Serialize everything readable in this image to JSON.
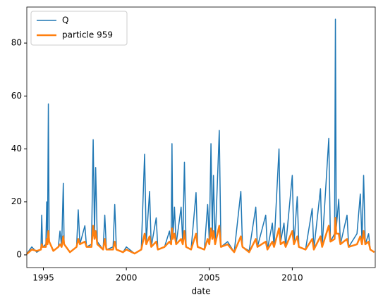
{
  "chart_data": {
    "type": "line",
    "xlabel": "date",
    "x": [
      1994.0,
      1994.3,
      1994.6,
      1994.85,
      1994.9,
      1994.95,
      1995.15,
      1995.2,
      1995.25,
      1995.3,
      1995.35,
      1995.6,
      1995.9,
      1996.0,
      1996.1,
      1996.2,
      1996.25,
      1996.6,
      1997.0,
      1997.1,
      1997.2,
      1997.5,
      1997.6,
      1997.9,
      1998.0,
      1998.08,
      1998.15,
      1998.25,
      1998.6,
      1998.7,
      1998.8,
      1999.2,
      1999.3,
      1999.4,
      1999.8,
      2000.0,
      2000.5,
      2000.9,
      2001.1,
      2001.2,
      2001.4,
      2001.5,
      2001.8,
      2001.9,
      2002.3,
      2002.6,
      2002.7,
      2002.75,
      2002.8,
      2002.9,
      2003.0,
      2003.3,
      2003.4,
      2003.5,
      2003.6,
      2003.9,
      2004.2,
      2004.3,
      2004.7,
      2004.9,
      2005.0,
      2005.1,
      2005.18,
      2005.25,
      2005.35,
      2005.6,
      2005.7,
      2006.1,
      2006.5,
      2006.9,
      2007.0,
      2007.4,
      2007.8,
      2007.9,
      2008.4,
      2008.5,
      2008.8,
      2008.9,
      2009.2,
      2009.3,
      2009.5,
      2009.6,
      2010.0,
      2010.1,
      2010.3,
      2010.4,
      2010.8,
      2011.2,
      2011.3,
      2011.7,
      2011.8,
      2012.2,
      2012.3,
      2012.55,
      2012.6,
      2012.65,
      2012.8,
      2012.9,
      2013.3,
      2013.4,
      2013.9,
      2014.1,
      2014.2,
      2014.3,
      2014.4,
      2014.6,
      2014.7,
      2014.95
    ],
    "series": [
      {
        "name": "Q",
        "color": "#1f77b4",
        "values": [
          0.5,
          3,
          1,
          2,
          15,
          3,
          4,
          20,
          6,
          57,
          5,
          1.5,
          3,
          9,
          3,
          27,
          4,
          1,
          3,
          17,
          4,
          11,
          3,
          4,
          43.5,
          8,
          33,
          5,
          2,
          15,
          2,
          3,
          19,
          2,
          1,
          3,
          0.5,
          2,
          38,
          5,
          24,
          3,
          14,
          2,
          3,
          9,
          4,
          42,
          6,
          18,
          4,
          18,
          4,
          35,
          3,
          2,
          23.5,
          3,
          2,
          19,
          5,
          42,
          8,
          30,
          4,
          47,
          3,
          5,
          1,
          24,
          3,
          1.5,
          18,
          3,
          15,
          2,
          12,
          3,
          40,
          5,
          12,
          3,
          30,
          4,
          22,
          3,
          2,
          17.5,
          2,
          25,
          3,
          44,
          5,
          8,
          89,
          10,
          21,
          4,
          15,
          3,
          8,
          23,
          5,
          30,
          4,
          8,
          2,
          1
        ]
      },
      {
        "name": "particle 959",
        "color": "#ff7f0e",
        "values": [
          0.3,
          2,
          1.5,
          2,
          4,
          3,
          3,
          6,
          4,
          9,
          5,
          1.5,
          3,
          4,
          3,
          7,
          4,
          1,
          3,
          6,
          4,
          5,
          3,
          3,
          11,
          6,
          9,
          4,
          2,
          6,
          2,
          2,
          5,
          2,
          1,
          2,
          0.5,
          2,
          8,
          4,
          7,
          3,
          5,
          2,
          3,
          5,
          4,
          10,
          6,
          8,
          4,
          6,
          4,
          9,
          3,
          2,
          8,
          3,
          2,
          6,
          4,
          10,
          6,
          9,
          4,
          11,
          3,
          4,
          1,
          7,
          3,
          1,
          6,
          3,
          5,
          2,
          5,
          3,
          10,
          4,
          5,
          3,
          9,
          4,
          7,
          3,
          2,
          6,
          2,
          7,
          3,
          11,
          5,
          6,
          14,
          8,
          8,
          4,
          6,
          3,
          4,
          7,
          4,
          9,
          4,
          5,
          2,
          1
        ]
      }
    ],
    "xlim": [
      1994,
      2015
    ],
    "xticks": [
      1995,
      2000,
      2005,
      2010
    ],
    "ylim": [
      -4.8,
      93.6
    ],
    "yticks": [
      0,
      20,
      40,
      60,
      80
    ],
    "legend": "upper left"
  }
}
